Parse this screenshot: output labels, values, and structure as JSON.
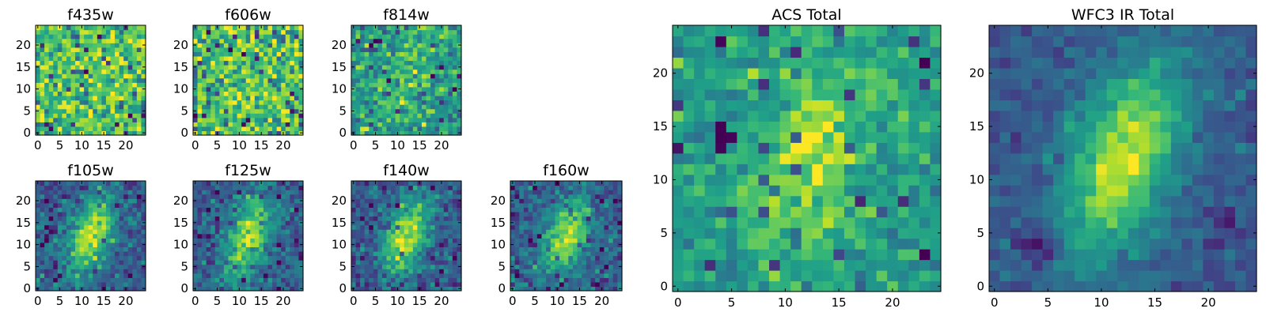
{
  "chart_data": [
    {
      "type": "heatmap",
      "title": "f435w",
      "panel": "f435w",
      "grid_size": 25,
      "seed": 11,
      "structure": "noise",
      "xlim": [
        -0.5,
        24.5
      ],
      "ylim": [
        -0.5,
        24.5
      ],
      "xticks": [
        0,
        5,
        10,
        15,
        20
      ],
      "yticks": [
        0,
        5,
        10,
        15,
        20
      ],
      "colormap": "viridis"
    },
    {
      "type": "heatmap",
      "title": "f606w",
      "panel": "f606w",
      "grid_size": 25,
      "seed": 23,
      "structure": "noise",
      "xlim": [
        -0.5,
        24.5
      ],
      "ylim": [
        -0.5,
        24.5
      ],
      "xticks": [
        0,
        5,
        10,
        15,
        20
      ],
      "yticks": [
        0,
        5,
        10,
        15,
        20
      ],
      "colormap": "viridis"
    },
    {
      "type": "heatmap",
      "title": "f814w",
      "panel": "f814w",
      "grid_size": 25,
      "seed": 37,
      "structure": "weak-source",
      "xlim": [
        -0.5,
        24.5
      ],
      "ylim": [
        -0.5,
        24.5
      ],
      "xticks": [
        0,
        5,
        10,
        15,
        20
      ],
      "yticks": [
        0,
        5,
        10,
        15,
        20
      ],
      "colormap": "viridis"
    },
    {
      "type": "heatmap",
      "title": "f105w",
      "panel": "f105w",
      "grid_size": 25,
      "seed": 41,
      "structure": "source",
      "xlim": [
        -0.5,
        24.5
      ],
      "ylim": [
        -0.5,
        24.5
      ],
      "xticks": [
        0,
        5,
        10,
        15,
        20
      ],
      "yticks": [
        0,
        5,
        10,
        15,
        20
      ],
      "colormap": "viridis"
    },
    {
      "type": "heatmap",
      "title": "f125w",
      "panel": "f125w",
      "grid_size": 25,
      "seed": 53,
      "structure": "source",
      "xlim": [
        -0.5,
        24.5
      ],
      "ylim": [
        -0.5,
        24.5
      ],
      "xticks": [
        0,
        5,
        10,
        15,
        20
      ],
      "yticks": [
        0,
        5,
        10,
        15,
        20
      ],
      "colormap": "viridis"
    },
    {
      "type": "heatmap",
      "title": "f140w",
      "panel": "f140w",
      "grid_size": 25,
      "seed": 67,
      "structure": "source",
      "xlim": [
        -0.5,
        24.5
      ],
      "ylim": [
        -0.5,
        24.5
      ],
      "xticks": [
        0,
        5,
        10,
        15,
        20
      ],
      "yticks": [
        0,
        5,
        10,
        15,
        20
      ],
      "colormap": "viridis"
    },
    {
      "type": "heatmap",
      "title": "f160w",
      "panel": "f160w",
      "grid_size": 25,
      "seed": 79,
      "structure": "source",
      "xlim": [
        -0.5,
        24.5
      ],
      "ylim": [
        -0.5,
        24.5
      ],
      "xticks": [
        0,
        5,
        10,
        15,
        20
      ],
      "yticks": [
        0,
        5,
        10,
        15,
        20
      ],
      "colormap": "viridis"
    },
    {
      "type": "heatmap",
      "title": "ACS Total",
      "panel": "acs-total",
      "grid_size": 25,
      "seed": 83,
      "structure": "acs",
      "xlim": [
        -0.5,
        24.5
      ],
      "ylim": [
        -0.5,
        24.5
      ],
      "xticks": [
        0,
        5,
        10,
        15,
        20
      ],
      "yticks": [
        0,
        5,
        10,
        15,
        20
      ],
      "colormap": "viridis"
    },
    {
      "type": "heatmap",
      "title": "WFC3 IR Total",
      "panel": "wfc3-ir-total",
      "grid_size": 25,
      "seed": 97,
      "structure": "ir",
      "xlim": [
        -0.5,
        24.5
      ],
      "ylim": [
        -0.5,
        24.5
      ],
      "xticks": [
        0,
        5,
        10,
        15,
        20
      ],
      "yticks": [
        0,
        5,
        10,
        15,
        20
      ],
      "colormap": "viridis"
    }
  ]
}
